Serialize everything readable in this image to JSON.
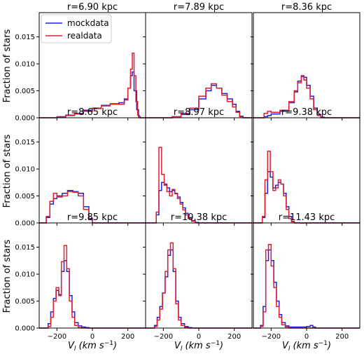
{
  "chart_data": {
    "type": "histogram-grid",
    "ylabel": "Fraction of stars",
    "xlabel_symbol": "V",
    "xlabel_subscript": "l",
    "xlabel_unit": "(km s",
    "xlabel_exp": "−1",
    "xlabel_close": ")",
    "xlim": [
      -300,
      300
    ],
    "ylim": [
      0,
      0.0195
    ],
    "xticks": [
      -200,
      0,
      200
    ],
    "xtick_labels": [
      "−200",
      "0",
      "200"
    ],
    "yticks": [
      0.0,
      0.005,
      0.01,
      0.015
    ],
    "ytick_labels": [
      "0.000",
      "0.005",
      "0.010",
      "0.015"
    ],
    "legend": {
      "location": "top-left of first panel",
      "entries": [
        {
          "name": "mockdata",
          "color": "#1f1fe0"
        },
        {
          "name": "realdata",
          "color": "#e01f2d"
        }
      ]
    },
    "panels": [
      {
        "title": "r=6.90 kpc",
        "mock": [
          [
            -300,
            0
          ],
          [
            -250,
            0
          ],
          [
            -200,
            0.0002
          ],
          [
            -150,
            0.0005
          ],
          [
            -100,
            0.0008
          ],
          [
            -50,
            0.0014
          ],
          [
            0,
            0.0018
          ],
          [
            50,
            0.0023
          ],
          [
            100,
            0.0026
          ],
          [
            150,
            0.0028
          ],
          [
            180,
            0.0035
          ],
          [
            200,
            0.0055
          ],
          [
            215,
            0.0078
          ],
          [
            225,
            0.0085
          ],
          [
            235,
            0.005
          ],
          [
            250,
            0.0015
          ],
          [
            260,
            0.0002
          ],
          [
            270,
            0
          ],
          [
            300,
            0
          ]
        ],
        "real": [
          [
            -300,
            0
          ],
          [
            -250,
            0
          ],
          [
            -200,
            0.0001
          ],
          [
            -150,
            0.0004
          ],
          [
            -100,
            0.0007
          ],
          [
            -50,
            0.0012
          ],
          [
            0,
            0.0017
          ],
          [
            50,
            0.0022
          ],
          [
            100,
            0.0025
          ],
          [
            150,
            0.0025
          ],
          [
            180,
            0.0033
          ],
          [
            200,
            0.0055
          ],
          [
            215,
            0.009
          ],
          [
            225,
            0.012
          ],
          [
            235,
            0.0078
          ],
          [
            245,
            0.003
          ],
          [
            255,
            0.0005
          ],
          [
            265,
            0
          ],
          [
            300,
            0
          ]
        ]
      },
      {
        "title": "r=7.89 kpc",
        "mock": [
          [
            -300,
            0
          ],
          [
            -200,
            0
          ],
          [
            -150,
            0.0002
          ],
          [
            -100,
            0.0006
          ],
          [
            -50,
            0.0015
          ],
          [
            0,
            0.0035
          ],
          [
            40,
            0.005
          ],
          [
            70,
            0.006
          ],
          [
            100,
            0.0055
          ],
          [
            130,
            0.0045
          ],
          [
            160,
            0.0035
          ],
          [
            190,
            0.0025
          ],
          [
            210,
            0.0012
          ],
          [
            230,
            0.0003
          ],
          [
            250,
            0
          ],
          [
            300,
            0
          ]
        ],
        "real": [
          [
            -300,
            0
          ],
          [
            -200,
            0
          ],
          [
            -150,
            0.0002
          ],
          [
            -100,
            0.0008
          ],
          [
            -50,
            0.0018
          ],
          [
            0,
            0.004
          ],
          [
            40,
            0.0055
          ],
          [
            70,
            0.0063
          ],
          [
            100,
            0.0055
          ],
          [
            130,
            0.0042
          ],
          [
            160,
            0.003
          ],
          [
            190,
            0.002
          ],
          [
            210,
            0.001
          ],
          [
            230,
            0.0002
          ],
          [
            250,
            0
          ],
          [
            300,
            0
          ]
        ]
      },
      {
        "title": "r=8.36 kpc",
        "mock": [
          [
            -300,
            0
          ],
          [
            -240,
            0.0002
          ],
          [
            -220,
            0.0004
          ],
          [
            -200,
            0.0007
          ],
          [
            -150,
            0.0012
          ],
          [
            -100,
            0.0028
          ],
          [
            -70,
            0.0048
          ],
          [
            -50,
            0.0068
          ],
          [
            -30,
            0.0078
          ],
          [
            -15,
            0.0075
          ],
          [
            0,
            0.006
          ],
          [
            20,
            0.004
          ],
          [
            40,
            0.0018
          ],
          [
            60,
            0.0006
          ],
          [
            80,
            0.0001
          ],
          [
            100,
            0
          ],
          [
            300,
            0
          ]
        ],
        "real": [
          [
            -300,
            0
          ],
          [
            -240,
            0.0008
          ],
          [
            -220,
            0.0012
          ],
          [
            -200,
            0.001
          ],
          [
            -150,
            0.0014
          ],
          [
            -100,
            0.003
          ],
          [
            -70,
            0.005
          ],
          [
            -50,
            0.0065
          ],
          [
            -30,
            0.0076
          ],
          [
            -15,
            0.007
          ],
          [
            0,
            0.0055
          ],
          [
            20,
            0.0035
          ],
          [
            40,
            0.0015
          ],
          [
            60,
            0.0004
          ],
          [
            80,
            0
          ],
          [
            300,
            0
          ]
        ]
      },
      {
        "title": "r=8.65 kpc",
        "mock": [
          [
            -300,
            0
          ],
          [
            -260,
            0.001
          ],
          [
            -240,
            0.0035
          ],
          [
            -220,
            0.0045
          ],
          [
            -200,
            0.005
          ],
          [
            -170,
            0.0055
          ],
          [
            -140,
            0.006
          ],
          [
            -110,
            0.0058
          ],
          [
            -80,
            0.0055
          ],
          [
            -50,
            0.003
          ],
          [
            -20,
            0.0008
          ],
          [
            0,
            0
          ],
          [
            300,
            0
          ]
        ],
        "real": [
          [
            -300,
            0
          ],
          [
            -260,
            0.0012
          ],
          [
            -240,
            0.004
          ],
          [
            -220,
            0.0055
          ],
          [
            -200,
            0.0048
          ],
          [
            -170,
            0.005
          ],
          [
            -140,
            0.0058
          ],
          [
            -110,
            0.0057
          ],
          [
            -80,
            0.005
          ],
          [
            -50,
            0.0025
          ],
          [
            -20,
            0.0006
          ],
          [
            0,
            0
          ],
          [
            300,
            0
          ]
        ]
      },
      {
        "title": "r=8.97 kpc",
        "mock": [
          [
            -300,
            0
          ],
          [
            -240,
            0.0015
          ],
          [
            -225,
            0.006
          ],
          [
            -210,
            0.0075
          ],
          [
            -195,
            0.0072
          ],
          [
            -180,
            0.0065
          ],
          [
            -165,
            0.0058
          ],
          [
            -150,
            0.006
          ],
          [
            -135,
            0.0055
          ],
          [
            -120,
            0.0048
          ],
          [
            -105,
            0.0038
          ],
          [
            -90,
            0.0028
          ],
          [
            -75,
            0.0018
          ],
          [
            -60,
            0.001
          ],
          [
            -40,
            0.0004
          ],
          [
            -20,
            0.0001
          ],
          [
            0,
            0
          ],
          [
            300,
            0
          ]
        ],
        "real": [
          [
            -300,
            0
          ],
          [
            -240,
            0.002
          ],
          [
            -225,
            0.014
          ],
          [
            -210,
            0.009
          ],
          [
            -195,
            0.007
          ],
          [
            -180,
            0.0058
          ],
          [
            -165,
            0.005
          ],
          [
            -150,
            0.0062
          ],
          [
            -135,
            0.0054
          ],
          [
            -120,
            0.0045
          ],
          [
            -105,
            0.0035
          ],
          [
            -90,
            0.0024
          ],
          [
            -75,
            0.0015
          ],
          [
            -60,
            0.0008
          ],
          [
            -40,
            0.0003
          ],
          [
            -20,
            0
          ],
          [
            300,
            0
          ]
        ]
      },
      {
        "title": "r=9.38 kpc",
        "mock": [
          [
            -300,
            0
          ],
          [
            -250,
            0.001
          ],
          [
            -235,
            0.0055
          ],
          [
            -220,
            0.0095
          ],
          [
            -205,
            0.0085
          ],
          [
            -190,
            0.0065
          ],
          [
            -175,
            0.007
          ],
          [
            -160,
            0.0075
          ],
          [
            -145,
            0.0072
          ],
          [
            -130,
            0.0055
          ],
          [
            -115,
            0.003
          ],
          [
            -100,
            0.0012
          ],
          [
            -85,
            0.0003
          ],
          [
            -70,
            0
          ],
          [
            300,
            0
          ]
        ],
        "real": [
          [
            -300,
            0
          ],
          [
            -250,
            0.0012
          ],
          [
            -235,
            0.008
          ],
          [
            -220,
            0.0133
          ],
          [
            -205,
            0.0095
          ],
          [
            -190,
            0.006
          ],
          [
            -175,
            0.0065
          ],
          [
            -160,
            0.008
          ],
          [
            -145,
            0.0072
          ],
          [
            -130,
            0.005
          ],
          [
            -115,
            0.0025
          ],
          [
            -100,
            0.0008
          ],
          [
            -85,
            0.0002
          ],
          [
            -70,
            0
          ],
          [
            300,
            0
          ]
        ]
      },
      {
        "title": "r=9.85 kpc",
        "mock": [
          [
            -300,
            0
          ],
          [
            -250,
            0.0008
          ],
          [
            -235,
            0.003
          ],
          [
            -220,
            0.0055
          ],
          [
            -205,
            0.007
          ],
          [
            -190,
            0.0062
          ],
          [
            -175,
            0.0105
          ],
          [
            -160,
            0.0125
          ],
          [
            -145,
            0.0105
          ],
          [
            -130,
            0.006
          ],
          [
            -115,
            0.003
          ],
          [
            -100,
            0.001
          ],
          [
            -80,
            0.0004
          ],
          [
            -60,
            0.0002
          ],
          [
            -40,
            0.0001
          ],
          [
            -20,
            0
          ],
          [
            300,
            0
          ]
        ],
        "real": [
          [
            -300,
            0
          ],
          [
            -250,
            0.0003
          ],
          [
            -235,
            0.002
          ],
          [
            -220,
            0.005
          ],
          [
            -205,
            0.0075
          ],
          [
            -190,
            0.006
          ],
          [
            -175,
            0.0123
          ],
          [
            -160,
            0.0153
          ],
          [
            -145,
            0.011
          ],
          [
            -130,
            0.005
          ],
          [
            -115,
            0.002
          ],
          [
            -100,
            0.0005
          ],
          [
            -80,
            0.0001
          ],
          [
            -60,
            0
          ],
          [
            300,
            0
          ]
        ]
      },
      {
        "title": "r=10.38 kpc",
        "mock": [
          [
            -300,
            0
          ],
          [
            -250,
            0.0005
          ],
          [
            -235,
            0.002
          ],
          [
            -220,
            0.004
          ],
          [
            -205,
            0.0065
          ],
          [
            -190,
            0.0095
          ],
          [
            -175,
            0.0135
          ],
          [
            -160,
            0.0145
          ],
          [
            -145,
            0.0105
          ],
          [
            -130,
            0.005
          ],
          [
            -115,
            0.002
          ],
          [
            -100,
            0.0008
          ],
          [
            -80,
            0.0003
          ],
          [
            -60,
            0.0001
          ],
          [
            -40,
            0
          ],
          [
            300,
            0
          ]
        ],
        "real": [
          [
            -300,
            0
          ],
          [
            -250,
            0.0003
          ],
          [
            -235,
            0.0015
          ],
          [
            -220,
            0.0035
          ],
          [
            -205,
            0.0065
          ],
          [
            -190,
            0.0105
          ],
          [
            -175,
            0.0145
          ],
          [
            -160,
            0.0158
          ],
          [
            -145,
            0.011
          ],
          [
            -130,
            0.0045
          ],
          [
            -115,
            0.0015
          ],
          [
            -100,
            0.0005
          ],
          [
            -80,
            0.0001
          ],
          [
            -60,
            0
          ],
          [
            300,
            0
          ]
        ]
      },
      {
        "title": "r=11.43 kpc",
        "mock": [
          [
            -300,
            0
          ],
          [
            -260,
            0.0005
          ],
          [
            -245,
            0.004
          ],
          [
            -230,
            0.0125
          ],
          [
            -215,
            0.0145
          ],
          [
            -200,
            0.0125
          ],
          [
            -185,
            0.0085
          ],
          [
            -170,
            0.005
          ],
          [
            -155,
            0.0025
          ],
          [
            -140,
            0.001
          ],
          [
            -120,
            0.0004
          ],
          [
            -100,
            0.0002
          ],
          [
            -50,
            0.0002
          ],
          [
            0,
            0.0003
          ],
          [
            20,
            0.0005
          ],
          [
            35,
            0.0002
          ],
          [
            50,
            0
          ],
          [
            300,
            0
          ]
        ],
        "real": [
          [
            -300,
            0
          ],
          [
            -260,
            0.0003
          ],
          [
            -245,
            0.003
          ],
          [
            -230,
            0.0145
          ],
          [
            -215,
            0.0155
          ],
          [
            -200,
            0.0115
          ],
          [
            -185,
            0.0075
          ],
          [
            -170,
            0.004
          ],
          [
            -155,
            0.002
          ],
          [
            -140,
            0.0006
          ],
          [
            -120,
            0.0002
          ],
          [
            -100,
            0
          ],
          [
            300,
            0
          ]
        ]
      }
    ]
  }
}
